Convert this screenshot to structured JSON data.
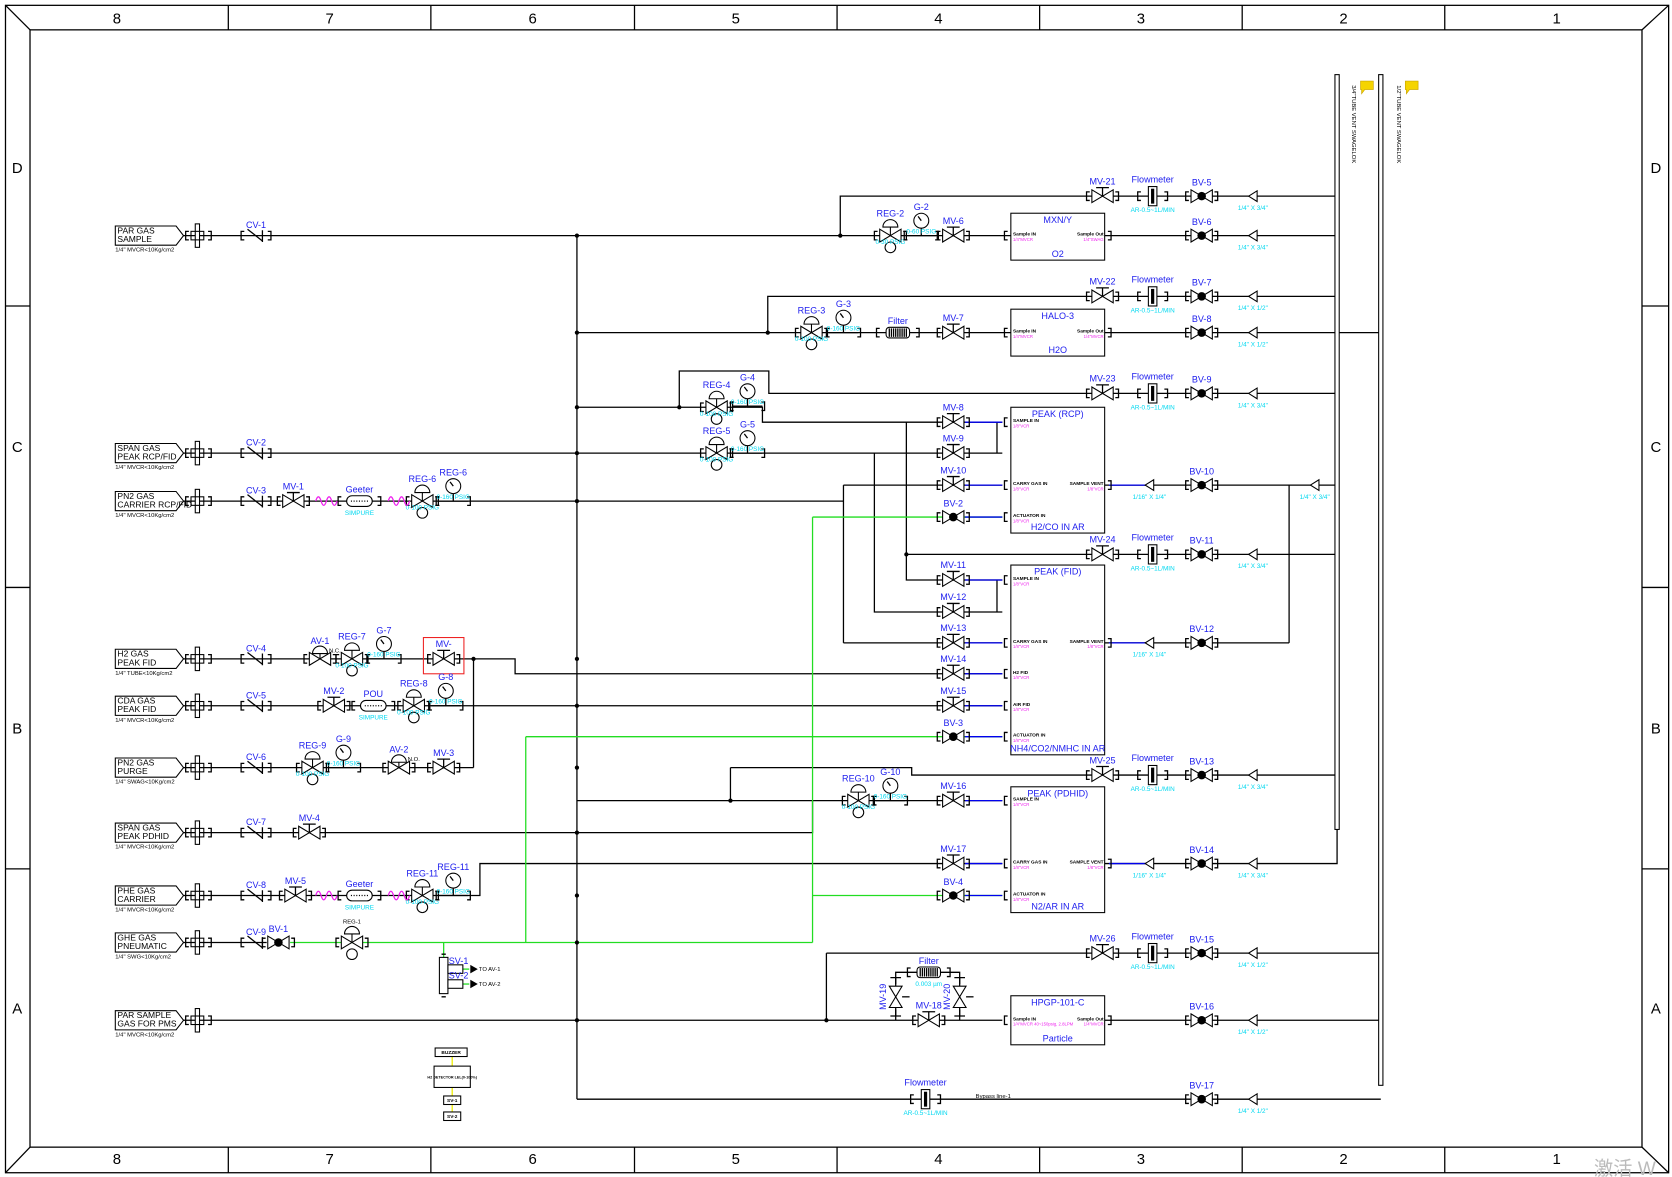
{
  "frame": {
    "columns": [
      "8",
      "7",
      "6",
      "5",
      "4",
      "3",
      "2",
      "1"
    ],
    "rows": [
      "D",
      "C",
      "B",
      "A"
    ]
  },
  "colors": {
    "line": "#000000",
    "pneumatic": "#22dd22",
    "instrument": "#0000ee",
    "tag": "#2020ee",
    "spec": "#00d8f0",
    "port_spec": "#ee22ee",
    "highlight": "#ee2222",
    "alarm": "#eeee00"
  },
  "inlets": [
    {
      "line1": "PAR GAS",
      "line2": "SAMPLE",
      "spec": "1/4\" MVCR<10Kg/cm2"
    },
    {
      "line1": "SPAN GAS",
      "line2": "PEAK RCP/FID",
      "spec": "1/4\" MVCR<10Kg/cm2"
    },
    {
      "line1": "PN2 GAS",
      "line2": "CARRIER RCP/FID",
      "spec": "1/4\" MVCR<10Kg/cm2"
    },
    {
      "line1": "H2 GAS",
      "line2": "PEAK FID",
      "spec": "1/4\" TUBE<10Kg/cm2"
    },
    {
      "line1": "CDA GAS",
      "line2": "PEAK FID",
      "spec": "1/4\" MVCR<10Kg/cm2"
    },
    {
      "line1": "PN2 GAS",
      "line2": "PURGE",
      "spec": "1/4\" SWAG<10Kg/cm2"
    },
    {
      "line1": "SPAN GAS",
      "line2": "PEAK PDHID",
      "spec": "1/4\" MVCR<10Kg/cm2"
    },
    {
      "line1": "PHE GAS",
      "line2": "CARRIER",
      "spec": "1/4\" MVCR<10Kg/cm2"
    },
    {
      "line1": "GHE GAS",
      "line2": "PNEUMATIC",
      "spec": "1/4\" SWG<10Kg/cm2"
    },
    {
      "line1": "PAR SAMPLE",
      "line2": "GAS FOR PMS",
      "spec": "1/4\" MVCR<10Kg/cm2"
    }
  ],
  "check_valves": [
    "CV-1",
    "CV-2",
    "CV-3",
    "CV-4",
    "CV-5",
    "CV-6",
    "CV-7",
    "CV-8",
    "CV-9"
  ],
  "manual_valves": [
    "MV-1",
    "MV-2",
    "MV-3",
    "MV-4",
    "MV-5",
    "MV-",
    "MV-6",
    "MV-7",
    "MV-8",
    "MV-9",
    "MV-10",
    "MV-11",
    "MV-12",
    "MV-13",
    "MV-14",
    "MV-15",
    "MV-16",
    "MV-17",
    "MV-18",
    "MV-19",
    "MV-20",
    "MV-21",
    "MV-22",
    "MV-23",
    "MV-24",
    "MV-25",
    "MV-26"
  ],
  "air_valves": [
    {
      "tag": "AV-1",
      "note": "N.C."
    },
    {
      "tag": "AV-2",
      "note": "N.O."
    }
  ],
  "ball_valves": [
    "BV-1",
    "BV-2",
    "BV-3",
    "BV-4",
    "BV-5",
    "BV-6",
    "BV-7",
    "BV-8",
    "BV-9",
    "BV-10",
    "BV-11",
    "BV-12",
    "BV-13",
    "BV-14",
    "BV-15",
    "BV-16",
    "BV-17"
  ],
  "regulators": [
    {
      "tag": "REG-1",
      "spec": ""
    },
    {
      "tag": "REG-2",
      "spec": "0-30 PSIG"
    },
    {
      "tag": "REG-3",
      "spec": "0-100 PSIG"
    },
    {
      "tag": "REG-4",
      "spec": "0-100 PSIG"
    },
    {
      "tag": "REG-5",
      "spec": "0-100 PSIG"
    },
    {
      "tag": "REG-6",
      "spec": "0-100 PSIG"
    },
    {
      "tag": "REG-7",
      "spec": "0-100 PSIG"
    },
    {
      "tag": "REG-8",
      "spec": "0-100 PSIG"
    },
    {
      "tag": "REG-9",
      "spec": "0-100 PSIG"
    },
    {
      "tag": "REG-10",
      "spec": "0-100 PSIG"
    },
    {
      "tag": "REG-11",
      "spec": "0-100 PSIG"
    }
  ],
  "gauges": [
    {
      "tag": "G-2",
      "spec": "0-60 PSIG"
    },
    {
      "tag": "G-3",
      "spec": "0-160 PSIG"
    },
    {
      "tag": "G-4",
      "spec": "0-160 PSIG"
    },
    {
      "tag": "G-5",
      "spec": "0-160 PSIG"
    },
    {
      "tag": "REG-6",
      "spec": "0-160 PSIG"
    },
    {
      "tag": "G-7",
      "spec": "0-160 PSIG"
    },
    {
      "tag": "G-8",
      "spec": "0-160 PSIG"
    },
    {
      "tag": "G-9",
      "spec": "0-160 PSIG"
    },
    {
      "tag": "G-10",
      "spec": "0-160 PSIG"
    },
    {
      "tag": "REG-11",
      "spec": "0-160 PSIG"
    }
  ],
  "flowmeters": [
    {
      "label": "Flowmeter",
      "spec": "AR-0.5~1L/MIN"
    },
    {
      "label": "Flowmeter",
      "spec": "AR-0.5~1L/MIN"
    },
    {
      "label": "Flowmeter",
      "spec": "AR-0.5~1L/MIN"
    },
    {
      "label": "Flowmeter",
      "spec": "AR-0.5~1L/MIN"
    },
    {
      "label": "Flowmeter",
      "spec": "AR-0.5~1L/MIN"
    },
    {
      "label": "Flowmeter",
      "spec": "AR-0.5~1L/MIN"
    },
    {
      "label": "Flowmeter",
      "spec": "AR-0.5~1L/MIN"
    }
  ],
  "filters": [
    {
      "label": "Filter",
      "spec": ""
    },
    {
      "label": "Filter",
      "spec": "0.003 µm"
    }
  ],
  "purifiers": [
    {
      "label": "Geeter",
      "spec": "SIMPURE"
    },
    {
      "label": "POU",
      "spec": "SIMPURE"
    },
    {
      "label": "Geeter",
      "spec": "SIMPURE"
    }
  ],
  "reducers": [
    "1/4\" X 3/4\"",
    "1/4\" X 3/4\"",
    "1/4\" X 1/2\"",
    "1/4\" X 1/2\"",
    "1/4\" X 3/4\"",
    "1/16\" X 1/4\"",
    "1/4\" X 3/4\"",
    "1/4\" X 3/4\"",
    "1/16\" X 1/4\"",
    "1/4\" X 3/4\"",
    "1/16\" X 1/4\"",
    "1/4\" X 3/4\"",
    "1/4\" X 1/2\"",
    "1/4\" X 1/2\"",
    "1/4\" X 1/2\""
  ],
  "analyzers": [
    {
      "title": "MXN/Y",
      "subtitle": "O2",
      "ports_in": [
        {
          "name": "Sample IN",
          "spec": "1/4\"MVCR"
        }
      ],
      "ports_out": [
        {
          "name": "Sample Out",
          "spec": "1/4\"SWAG"
        }
      ]
    },
    {
      "title": "HALO-3",
      "subtitle": "H2O",
      "ports_in": [
        {
          "name": "Sample IN",
          "spec": "1/4\"MVCR"
        }
      ],
      "ports_out": [
        {
          "name": "Sample Out",
          "spec": "1/4\"MVCR"
        }
      ]
    },
    {
      "title": "PEAK (RCP)",
      "subtitle": "H2/CO IN AR",
      "ports_in": [
        {
          "name": "SAMPLE IN",
          "spec": "1/8\"VCR"
        },
        {
          "name": "CARRY GAS IN",
          "spec": "1/8\"VCR"
        },
        {
          "name": "ACTUATOR IN",
          "spec": "1/8\"VCR"
        }
      ],
      "ports_out": [
        {
          "name": "SAMPLE VENT",
          "spec": "1/8\"VCR"
        }
      ]
    },
    {
      "title": "PEAK (FID)",
      "subtitle": "NH4/CO2/NMHC IN AR",
      "ports_in": [
        {
          "name": "SAMPLE IN",
          "spec": "1/8\"VCR"
        },
        {
          "name": "CARRY GAS IN",
          "spec": "1/8\"VCR"
        },
        {
          "name": "H2 FID",
          "spec": "1/8\"VCR"
        },
        {
          "name": "AIR FID",
          "spec": "1/8\"VCR"
        },
        {
          "name": "ACTUATOR IN",
          "spec": "1/8\"VCR"
        }
      ],
      "ports_out": [
        {
          "name": "SAMPLE VENT",
          "spec": "1/8\"VCR"
        }
      ]
    },
    {
      "title": "PEAK (PDHID)",
      "subtitle": "N2/AR IN AR",
      "ports_in": [
        {
          "name": "SAMPLE IN",
          "spec": "1/8\"VCR"
        },
        {
          "name": "CARRY GAS IN",
          "spec": "1/8\"VCR"
        },
        {
          "name": "ACTUATOR IN",
          "spec": "1/8\"VCR"
        }
      ],
      "ports_out": [
        {
          "name": "SAMPLE VENT",
          "spec": "1/8\"VCR"
        }
      ]
    },
    {
      "title": "HPGP-101-C",
      "subtitle": "Particle",
      "ports_in": [
        {
          "name": "Sample IN",
          "spec": "1/4\"MVCR 40~150psig, 2.8LPM"
        }
      ],
      "ports_out": [
        {
          "name": "Sample Out",
          "spec": "1/4\"MVCR"
        }
      ]
    }
  ],
  "vent_headers": [
    "3/4\"TUBE VENT SWAGELOK",
    "1/2\"TUBE VENT SWAGELOK"
  ],
  "bypass_label": "Bypass line-1",
  "solenoids": [
    {
      "tag": "SV-1",
      "target": "TO AV-1"
    },
    {
      "tag": "SV-2",
      "target": "TO AV-2"
    }
  ],
  "alarm_chain": [
    "BUZZER",
    "H2 DETECTOR LEL(0-100%)",
    "SV-1",
    "SV-2"
  ],
  "watermark": "激活 W"
}
